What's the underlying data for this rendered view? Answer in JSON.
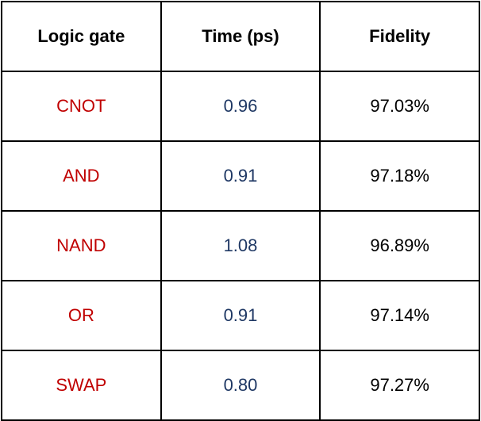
{
  "table": {
    "header": [
      "Logic gate",
      "Time (ps)",
      "Fidelity"
    ],
    "rows": [
      [
        "CNOT",
        "0.96",
        "97.03%"
      ],
      [
        "AND",
        "0.91",
        "97.18%"
      ],
      [
        "NAND",
        "1.08",
        "96.89%"
      ],
      [
        "OR",
        "0.91",
        "97.14%"
      ],
      [
        "SWAP",
        "0.80",
        "97.27%"
      ]
    ]
  }
}
